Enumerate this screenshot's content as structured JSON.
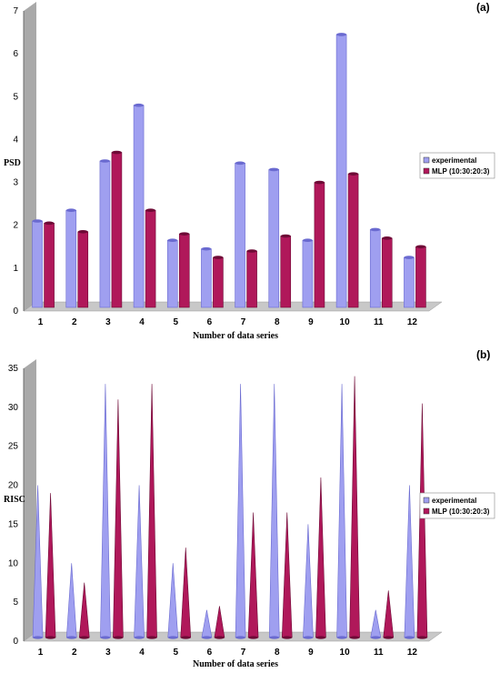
{
  "colors": {
    "experimental": "#9f9ff0",
    "experimental_dark": "#6a6ad0",
    "mlp": "#b0185a",
    "mlp_dark": "#6e0a36",
    "wall": "#a9a9a9",
    "floor": "#c8c8c8"
  },
  "chart_data": [
    {
      "type": "bar",
      "panel_label": "(a)",
      "ylabel": "PSD",
      "xlabel": "Number of data series",
      "categories": [
        "1",
        "2",
        "3",
        "4",
        "5",
        "6",
        "7",
        "8",
        "9",
        "10",
        "11",
        "12"
      ],
      "ylim": [
        0,
        7
      ],
      "yticks": [
        "0",
        "1",
        "2",
        "3",
        "4",
        "5",
        "6",
        "7"
      ],
      "legend_position": "right",
      "series": [
        {
          "name": "experimental",
          "values": [
            2.1,
            2.35,
            3.5,
            4.8,
            1.65,
            1.45,
            3.45,
            3.3,
            1.65,
            6.45,
            1.9,
            1.25
          ]
        },
        {
          "name": "MLP (10:30:20:3)",
          "values": [
            2.05,
            1.85,
            3.7,
            2.35,
            1.8,
            1.25,
            1.4,
            1.75,
            3.0,
            3.2,
            1.7,
            1.5
          ]
        }
      ]
    },
    {
      "type": "bar",
      "panel_label": "(b)",
      "ylabel": "RISC",
      "xlabel": "Number of data series",
      "categories": [
        "1",
        "2",
        "3",
        "4",
        "5",
        "6",
        "7",
        "8",
        "9",
        "10",
        "11",
        "12"
      ],
      "ylim": [
        0,
        35
      ],
      "yticks": [
        "0",
        "5",
        "10",
        "15",
        "20",
        "25",
        "30",
        "35"
      ],
      "legend_position": "right",
      "series": [
        {
          "name": "experimental",
          "values": [
            20,
            10,
            33,
            20,
            10,
            4,
            33,
            33,
            15,
            33,
            4,
            20
          ]
        },
        {
          "name": "MLP (10:30:20:3)",
          "values": [
            19,
            7.5,
            31,
            33,
            12,
            4.5,
            16.5,
            16.5,
            21,
            34,
            6.5,
            30.5
          ]
        }
      ]
    }
  ]
}
